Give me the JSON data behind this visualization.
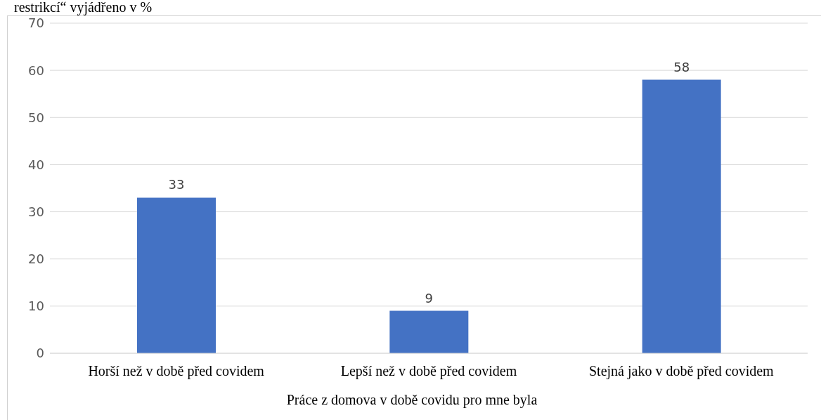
{
  "chart_data": {
    "type": "bar",
    "title": "restrikcí“ vyjádřeno v %",
    "xlabel": "Práce z domova v době covidu pro mne byla",
    "categories": [
      "Horší než v době před covidem",
      "Lepší než v době před covidem",
      "Stejná jako v době před covidem"
    ],
    "values": [
      33,
      9,
      58
    ],
    "color": "#4472c4",
    "ylim": [
      0,
      70
    ],
    "yticks": [
      0,
      10,
      20,
      30,
      40,
      50,
      60,
      70
    ],
    "grid": "y",
    "data_labels": true
  }
}
